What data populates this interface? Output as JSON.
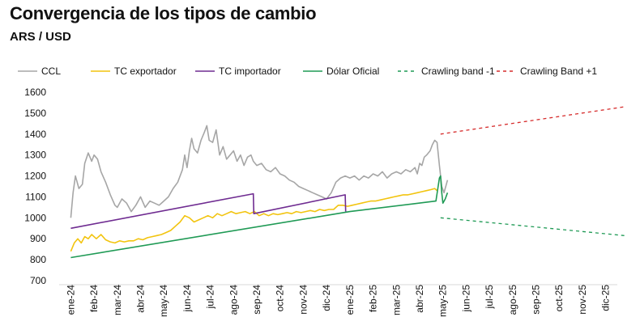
{
  "chart_data": {
    "type": "line",
    "title": "Convergencia de los tipos de cambio",
    "subtitle": "ARS / USD",
    "ylim": [
      700,
      1600
    ],
    "yticks": [
      700,
      800,
      900,
      1000,
      1100,
      1200,
      1300,
      1400,
      1500,
      1600
    ],
    "x_tick_labels": [
      "ene-24",
      "feb-24",
      "mar-24",
      "abr-24",
      "may-24",
      "jun-24",
      "jul-24",
      "ago-24",
      "sep-24",
      "oct-24",
      "nov-24",
      "dic-24",
      "ene-25",
      "feb-25",
      "mar-25",
      "abr-25",
      "may-25",
      "jun-25",
      "jul-25",
      "ago-25",
      "sep-25",
      "oct-25",
      "nov-25",
      "dic-25"
    ],
    "x_unit": "month index (0 = ene-24)",
    "legend_position": "top",
    "series": [
      {
        "name": "CCL",
        "color": "#a6a6a6",
        "style": "solid",
        "points": [
          [
            0.0,
            1000
          ],
          [
            0.1,
            1120
          ],
          [
            0.2,
            1200
          ],
          [
            0.35,
            1140
          ],
          [
            0.5,
            1160
          ],
          [
            0.6,
            1260
          ],
          [
            0.75,
            1310
          ],
          [
            0.9,
            1270
          ],
          [
            1.0,
            1300
          ],
          [
            1.15,
            1280
          ],
          [
            1.3,
            1220
          ],
          [
            1.5,
            1170
          ],
          [
            1.7,
            1110
          ],
          [
            1.9,
            1060
          ],
          [
            2.0,
            1050
          ],
          [
            2.2,
            1090
          ],
          [
            2.4,
            1070
          ],
          [
            2.6,
            1030
          ],
          [
            2.8,
            1060
          ],
          [
            3.0,
            1100
          ],
          [
            3.2,
            1050
          ],
          [
            3.4,
            1080
          ],
          [
            3.6,
            1070
          ],
          [
            3.8,
            1060
          ],
          [
            4.0,
            1080
          ],
          [
            4.2,
            1100
          ],
          [
            4.4,
            1140
          ],
          [
            4.6,
            1170
          ],
          [
            4.8,
            1230
          ],
          [
            4.9,
            1300
          ],
          [
            5.0,
            1240
          ],
          [
            5.1,
            1320
          ],
          [
            5.2,
            1380
          ],
          [
            5.3,
            1330
          ],
          [
            5.45,
            1310
          ],
          [
            5.6,
            1370
          ],
          [
            5.75,
            1410
          ],
          [
            5.85,
            1440
          ],
          [
            5.95,
            1370
          ],
          [
            6.1,
            1360
          ],
          [
            6.25,
            1420
          ],
          [
            6.4,
            1300
          ],
          [
            6.55,
            1340
          ],
          [
            6.7,
            1280
          ],
          [
            6.85,
            1300
          ],
          [
            7.0,
            1320
          ],
          [
            7.15,
            1270
          ],
          [
            7.3,
            1300
          ],
          [
            7.45,
            1250
          ],
          [
            7.6,
            1290
          ],
          [
            7.75,
            1300
          ],
          [
            7.85,
            1270
          ],
          [
            8.0,
            1250
          ],
          [
            8.2,
            1260
          ],
          [
            8.4,
            1230
          ],
          [
            8.6,
            1220
          ],
          [
            8.8,
            1240
          ],
          [
            9.0,
            1210
          ],
          [
            9.2,
            1200
          ],
          [
            9.4,
            1180
          ],
          [
            9.6,
            1170
          ],
          [
            9.8,
            1150
          ],
          [
            10.0,
            1140
          ],
          [
            10.2,
            1130
          ],
          [
            10.4,
            1120
          ],
          [
            10.6,
            1110
          ],
          [
            10.8,
            1100
          ],
          [
            11.0,
            1090
          ],
          [
            11.2,
            1120
          ],
          [
            11.4,
            1170
          ],
          [
            11.6,
            1190
          ],
          [
            11.8,
            1200
          ],
          [
            12.0,
            1190
          ],
          [
            12.2,
            1200
          ],
          [
            12.4,
            1180
          ],
          [
            12.6,
            1200
          ],
          [
            12.8,
            1190
          ],
          [
            13.0,
            1210
          ],
          [
            13.2,
            1200
          ],
          [
            13.4,
            1220
          ],
          [
            13.6,
            1190
          ],
          [
            13.8,
            1210
          ],
          [
            14.0,
            1220
          ],
          [
            14.2,
            1210
          ],
          [
            14.4,
            1230
          ],
          [
            14.6,
            1220
          ],
          [
            14.8,
            1240
          ],
          [
            14.9,
            1210
          ],
          [
            15.0,
            1260
          ],
          [
            15.1,
            1250
          ],
          [
            15.2,
            1290
          ],
          [
            15.3,
            1300
          ],
          [
            15.45,
            1320
          ],
          [
            15.55,
            1350
          ],
          [
            15.65,
            1370
          ],
          [
            15.75,
            1360
          ],
          [
            15.85,
            1250
          ],
          [
            15.95,
            1150
          ],
          [
            16.05,
            1120
          ],
          [
            16.2,
            1180
          ]
        ]
      },
      {
        "name": "TC exportador",
        "color": "#f2c40f",
        "style": "solid",
        "points": [
          [
            0.0,
            840
          ],
          [
            0.15,
            880
          ],
          [
            0.3,
            900
          ],
          [
            0.45,
            880
          ],
          [
            0.6,
            910
          ],
          [
            0.75,
            900
          ],
          [
            0.9,
            920
          ],
          [
            1.1,
            900
          ],
          [
            1.3,
            920
          ],
          [
            1.5,
            895
          ],
          [
            1.7,
            885
          ],
          [
            1.9,
            880
          ],
          [
            2.1,
            890
          ],
          [
            2.3,
            885
          ],
          [
            2.5,
            890
          ],
          [
            2.7,
            890
          ],
          [
            2.9,
            900
          ],
          [
            3.1,
            895
          ],
          [
            3.3,
            905
          ],
          [
            3.5,
            910
          ],
          [
            3.7,
            915
          ],
          [
            3.9,
            920
          ],
          [
            4.1,
            930
          ],
          [
            4.3,
            940
          ],
          [
            4.5,
            960
          ],
          [
            4.7,
            980
          ],
          [
            4.9,
            1010
          ],
          [
            5.1,
            1000
          ],
          [
            5.3,
            980
          ],
          [
            5.5,
            990
          ],
          [
            5.7,
            1000
          ],
          [
            5.9,
            1010
          ],
          [
            6.1,
            1000
          ],
          [
            6.3,
            1020
          ],
          [
            6.5,
            1010
          ],
          [
            6.7,
            1020
          ],
          [
            6.9,
            1030
          ],
          [
            7.1,
            1020
          ],
          [
            7.3,
            1025
          ],
          [
            7.5,
            1030
          ],
          [
            7.7,
            1020
          ],
          [
            7.9,
            1030
          ],
          [
            8.1,
            1010
          ],
          [
            8.3,
            1020
          ],
          [
            8.5,
            1010
          ],
          [
            8.7,
            1020
          ],
          [
            8.9,
            1015
          ],
          [
            9.1,
            1020
          ],
          [
            9.3,
            1025
          ],
          [
            9.5,
            1020
          ],
          [
            9.7,
            1030
          ],
          [
            9.9,
            1025
          ],
          [
            10.1,
            1030
          ],
          [
            10.3,
            1035
          ],
          [
            10.5,
            1030
          ],
          [
            10.7,
            1040
          ],
          [
            10.9,
            1035
          ],
          [
            11.1,
            1040
          ],
          [
            11.3,
            1040
          ],
          [
            11.5,
            1060
          ],
          [
            11.7,
            1060
          ],
          [
            11.9,
            1055
          ],
          [
            12.1,
            1060
          ],
          [
            12.3,
            1065
          ],
          [
            12.5,
            1070
          ],
          [
            12.7,
            1075
          ],
          [
            12.9,
            1080
          ],
          [
            13.1,
            1080
          ],
          [
            13.3,
            1085
          ],
          [
            13.5,
            1090
          ],
          [
            13.7,
            1095
          ],
          [
            13.9,
            1100
          ],
          [
            14.1,
            1105
          ],
          [
            14.3,
            1110
          ],
          [
            14.5,
            1110
          ],
          [
            14.7,
            1115
          ],
          [
            14.9,
            1120
          ],
          [
            15.1,
            1125
          ],
          [
            15.3,
            1130
          ],
          [
            15.5,
            1135
          ],
          [
            15.65,
            1140
          ],
          [
            15.75,
            1130
          ]
        ]
      },
      {
        "name": "TC importador",
        "color": "#6f2c91",
        "style": "solid",
        "points": [
          [
            0.0,
            950
          ],
          [
            7.85,
            1115
          ],
          [
            7.87,
            1020
          ],
          [
            11.8,
            1110
          ],
          [
            11.82,
            1030
          ]
        ]
      },
      {
        "name": "Dólar Oficial",
        "color": "#1f9a55",
        "style": "solid",
        "points": [
          [
            0.0,
            810
          ],
          [
            12.0,
            1030
          ],
          [
            15.7,
            1080
          ],
          [
            15.85,
            1190
          ],
          [
            15.9,
            1200
          ],
          [
            15.95,
            1120
          ],
          [
            16.0,
            1070
          ],
          [
            16.1,
            1090
          ],
          [
            16.2,
            1120
          ]
        ]
      },
      {
        "name": "Crawling band -1",
        "color": "#1f9a55",
        "style": "dashed",
        "points": [
          [
            15.9,
            1000
          ],
          [
            23.8,
            915
          ]
        ]
      },
      {
        "name": "Crawling Band +1",
        "color": "#d62b2b",
        "style": "dashed",
        "points": [
          [
            15.9,
            1400
          ],
          [
            23.8,
            1530
          ]
        ]
      }
    ]
  }
}
